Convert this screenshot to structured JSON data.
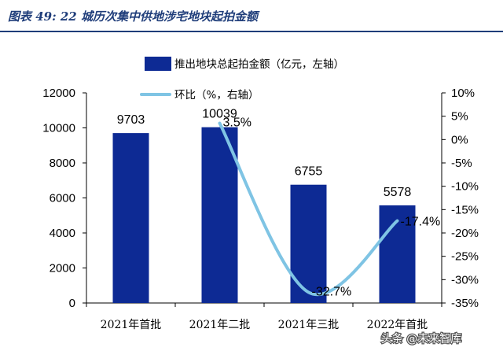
{
  "header": {
    "title": "图表 49:  22 城历次集中供地涉宅地块起拍金额"
  },
  "watermark": "头条 @未来智库",
  "colors": {
    "title": "#1f3d7a",
    "title_rule": "#1f3d7a",
    "bar": "#0d2a94",
    "line": "#7fc4e4"
  },
  "chart_data": {
    "type": "bar+line",
    "categories": [
      "2021年首批",
      "2021年二批",
      "2021年三批",
      "2022年首批"
    ],
    "series": [
      {
        "name": "推出地块总起拍金额（亿元，左轴）",
        "type": "bar",
        "axis": "left",
        "values": [
          9703,
          10039,
          6755,
          5578
        ],
        "labels": [
          "9703",
          "10039",
          "6755",
          "5578"
        ]
      },
      {
        "name": "环比（%，右轴）",
        "type": "line",
        "axis": "right",
        "values": [
          null,
          3.5,
          -32.7,
          -17.4
        ],
        "labels": [
          "",
          "3.5%",
          "-32.7%",
          "-17.4%"
        ]
      }
    ],
    "left_axis": {
      "ylim": [
        0,
        12000
      ],
      "ticks": [
        0,
        2000,
        4000,
        6000,
        8000,
        10000,
        12000
      ],
      "tick_labels": [
        "0",
        "2000",
        "4000",
        "6000",
        "8000",
        "10000",
        "12000"
      ]
    },
    "right_axis": {
      "ylim": [
        -35,
        10
      ],
      "ticks": [
        10,
        5,
        0,
        -5,
        -10,
        -15,
        -20,
        -25,
        -30,
        -35
      ],
      "tick_labels": [
        "10%",
        "5%",
        "0%",
        "-5%",
        "-10%",
        "-15%",
        "-20%",
        "-25%",
        "-30%",
        "-35%"
      ]
    },
    "legend_position": "top-center",
    "grid": false
  }
}
